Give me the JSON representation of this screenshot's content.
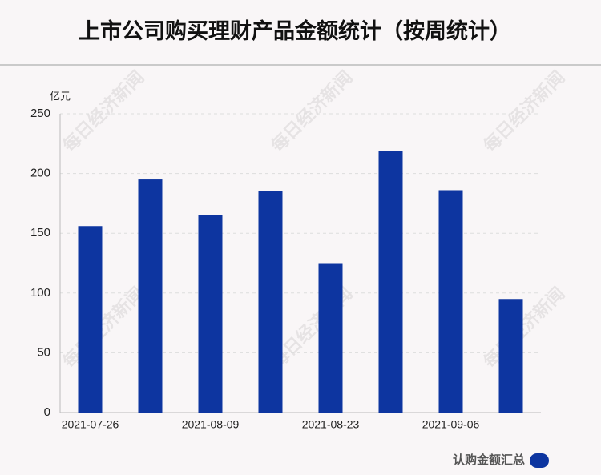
{
  "chart_data": {
    "type": "bar",
    "title": "上市公司购买理财产品金额统计（按周统计）",
    "y_unit": "亿元",
    "watermark": "每日经济新闻",
    "categories": [
      "2021-07-26",
      null,
      "2021-08-09",
      null,
      "2021-08-23",
      null,
      "2021-09-06",
      null
    ],
    "series": [
      {
        "name": "认购金额汇总",
        "color": "#0d35a0",
        "values": [
          156,
          195,
          165,
          185,
          125,
          219,
          186,
          95
        ]
      }
    ],
    "ylim": [
      0,
      250
    ],
    "yticks": [
      0,
      50,
      100,
      150,
      200,
      250
    ],
    "grid": true,
    "legend": "bottom-right"
  }
}
